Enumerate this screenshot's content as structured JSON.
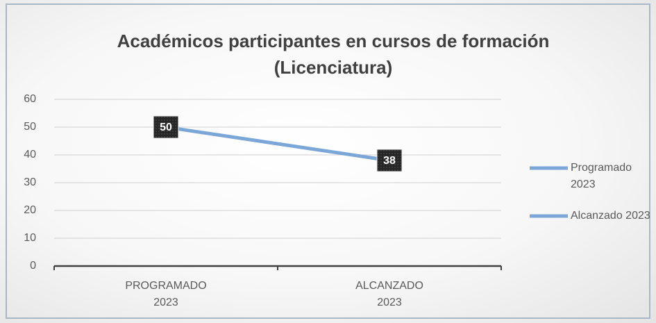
{
  "chart_data": {
    "type": "line",
    "title": "Académicos participantes en cursos de formación (Licenciatura)",
    "categories": [
      "PROGRAMADO 2023",
      "ALCANZADO 2023"
    ],
    "values": [
      50,
      38
    ],
    "color": "#7ba7d8",
    "legend": [
      "Programado 2023",
      "Alcanzado 2023"
    ],
    "legend_position": "right",
    "ylim": [
      0,
      60
    ],
    "yticks": [
      0,
      10,
      20,
      30,
      40,
      50,
      60
    ],
    "grid": true
  }
}
